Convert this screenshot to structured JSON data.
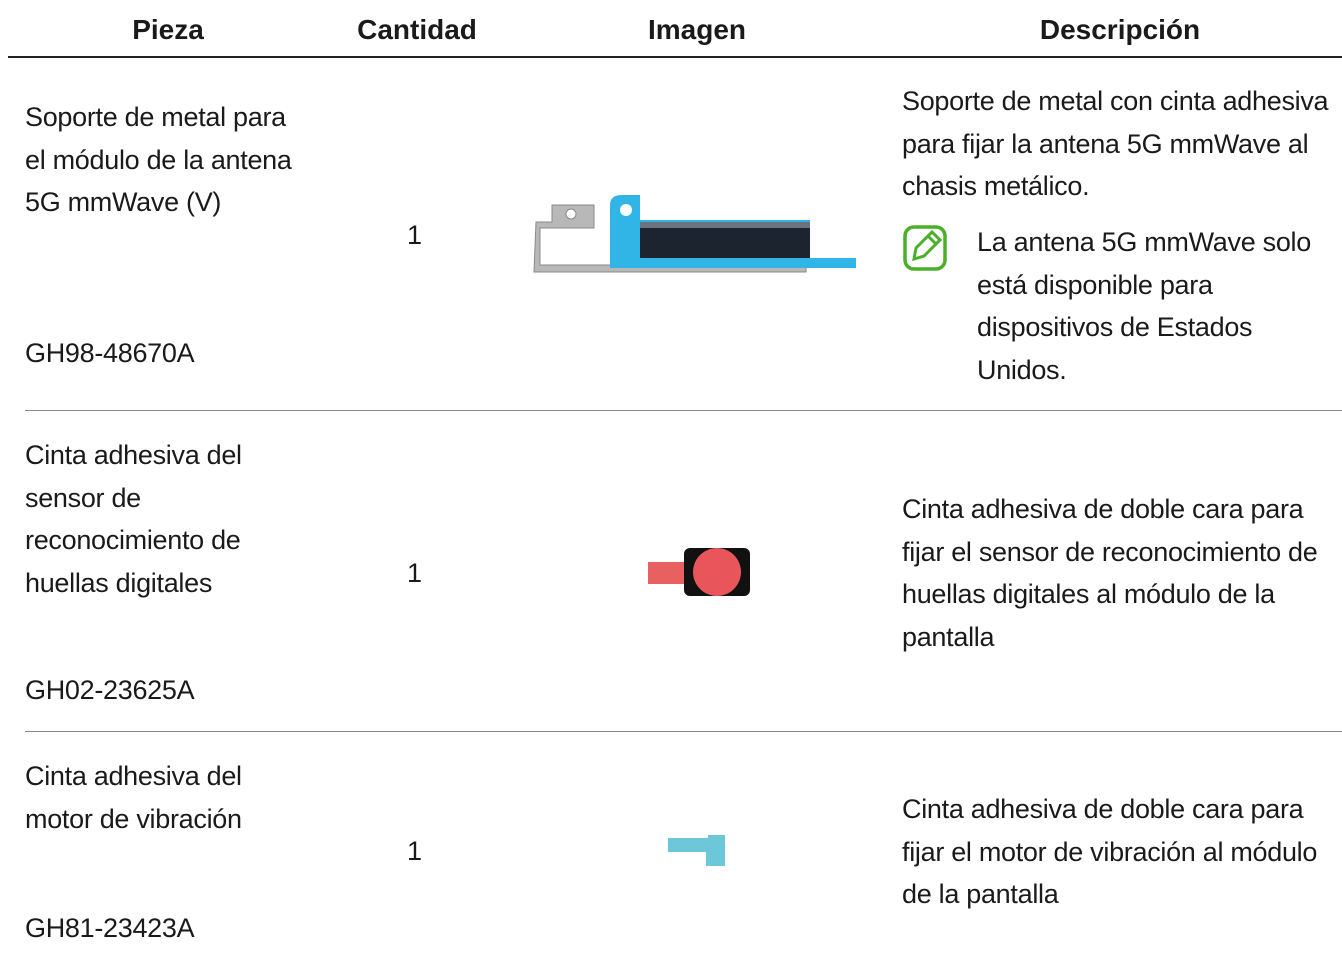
{
  "table": {
    "header": [
      "Pieza",
      "Cantidad",
      "Imagen",
      "Descripción"
    ],
    "rows": [
      {
        "name": "Soporte de metal para el módulo de la antena 5G mmWave (V)",
        "code": "GH98-48670A",
        "quantity": 1,
        "description": "Soporte de metal con cinta adhesiva para fijar la antena 5G mmWave al chasis metálico.",
        "note": "La antena 5G mmWave solo está disponible para dispositivos de Estados Unidos."
      },
      {
        "name": "Cinta adhesiva del sensor de reconocimiento de huellas digitales",
        "code": "GH02-23625A",
        "quantity": 1,
        "description": "Cinta adhesiva de doble cara para fijar el sensor de reconocimiento de huellas digitales al módulo de la pantalla"
      },
      {
        "name": "Cinta adhesiva del motor de vibración",
        "code": "GH81-23423A",
        "quantity": 1,
        "description": "Cinta adhesiva de doble cara para fijar el motor de vibración al módulo de la pantalla"
      }
    ]
  }
}
